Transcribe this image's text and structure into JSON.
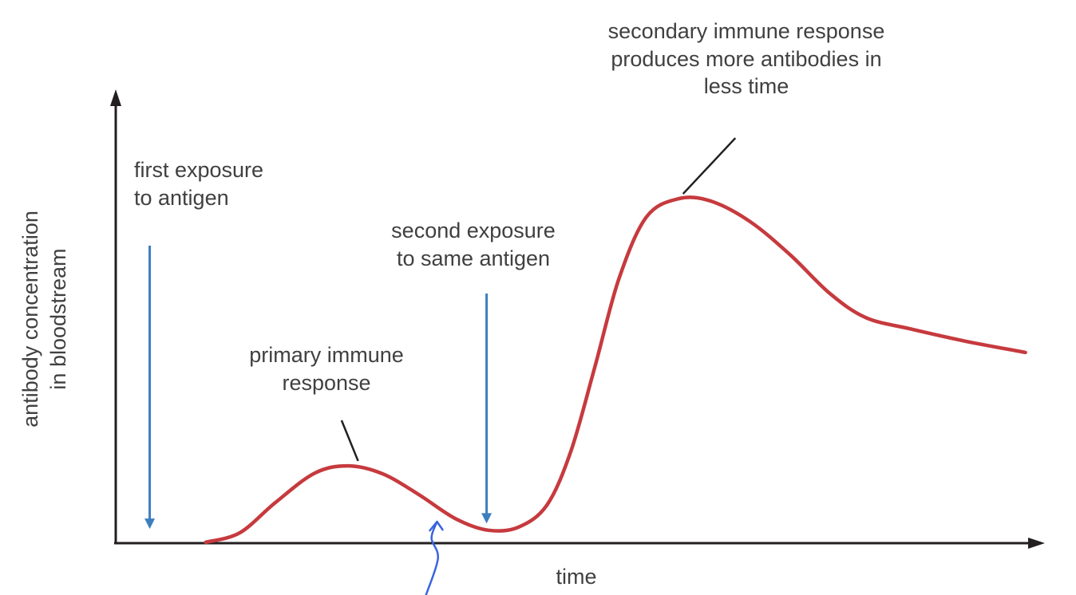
{
  "chart_data": {
    "type": "line",
    "title": "",
    "xlabel": "time",
    "ylabel": "antibody concentration\nin bloodstream",
    "xlim": [
      0,
      100
    ],
    "ylim": [
      0,
      100
    ],
    "units": "relative (axes unlabeled)",
    "grid": false,
    "legend": "none",
    "colors": {
      "curve": "#c63a3e",
      "arrow": "#3c7fc0",
      "freehand": "#3a63e0",
      "axis": "#231f20",
      "text": "#404041"
    },
    "series": [
      {
        "name": "antibody concentration in bloodstream",
        "color": "#c63a3e",
        "points": [
          [
            9.8,
            0.2
          ],
          [
            13.5,
            2.3
          ],
          [
            17.4,
            9.1
          ],
          [
            21.7,
            15.7
          ],
          [
            25.4,
            17.3
          ],
          [
            29.1,
            15.5
          ],
          [
            33.0,
            10.9
          ],
          [
            37.0,
            5.5
          ],
          [
            40.6,
            2.9
          ],
          [
            43.9,
            3.6
          ],
          [
            47.0,
            8.6
          ],
          [
            49.6,
            20.7
          ],
          [
            52.2,
            39.5
          ],
          [
            54.8,
            59.1
          ],
          [
            57.8,
            73.0
          ],
          [
            61.3,
            77.1
          ],
          [
            64.8,
            76.6
          ],
          [
            69.1,
            72.0
          ],
          [
            73.5,
            64.5
          ],
          [
            77.8,
            55.9
          ],
          [
            81.7,
            50.5
          ],
          [
            86.5,
            48.0
          ],
          [
            92.6,
            45.2
          ],
          [
            99.1,
            42.7
          ]
        ],
        "features": {
          "primary_peak": [
            25.4,
            17.3
          ],
          "trough": [
            40.6,
            2.9
          ],
          "secondary_peak": [
            61.3,
            77.1
          ]
        }
      }
    ],
    "annotations": [
      {
        "id": "first-exposure",
        "type": "arrow-down",
        "label": "first exposure\nto antigen",
        "x": 3.7,
        "y_from": 66.6,
        "y_to": 3.2
      },
      {
        "id": "second-exposure",
        "type": "arrow-down",
        "label": "second exposure\nto same antigen",
        "x": 40.4,
        "y_from": 55.9,
        "y_to": 4.4
      },
      {
        "id": "primary-response",
        "type": "callout",
        "label": "primary immune\nresponse",
        "x1": 24.6,
        "y1": 27.5,
        "x2": 26.4,
        "y2": 18.4
      },
      {
        "id": "secondary-response",
        "type": "callout",
        "label": "secondary immune response\nproduces more antibodies in\nless time",
        "x1": 67.5,
        "y1": 90.7,
        "x2": 61.8,
        "y2": 78.2
      },
      {
        "id": "freehand-arrow",
        "type": "freehand",
        "label": "",
        "points": [
          [
            33.8,
            -11.6
          ],
          [
            35.1,
            -3.4
          ],
          [
            34.4,
            1.1
          ],
          [
            35.0,
            4.8
          ]
        ]
      }
    ]
  }
}
